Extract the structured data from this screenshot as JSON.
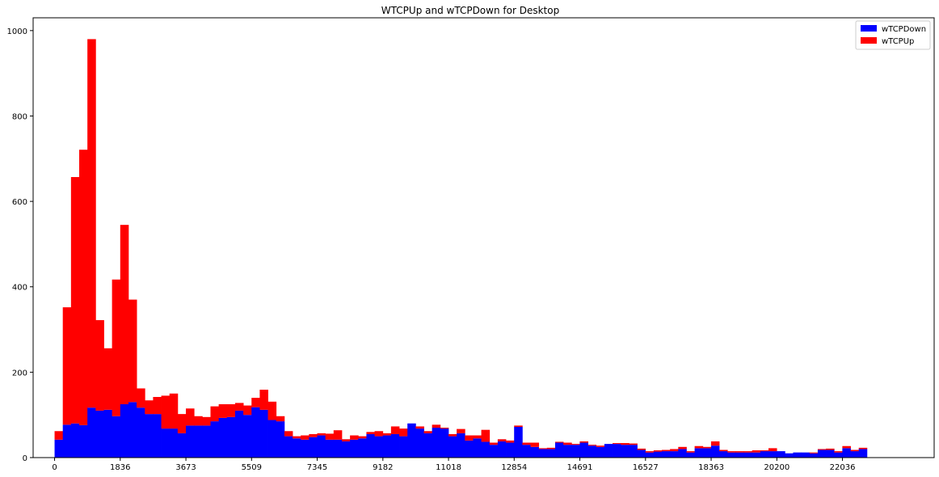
{
  "chart_data": {
    "type": "bar",
    "stacked": true,
    "title": "WTCPUp and wTCPDown for Desktop",
    "xlabel": "",
    "ylabel": "",
    "bin_width": 229.5,
    "x_start": 0,
    "xlim": [
      -600,
      24600
    ],
    "ylim": [
      0,
      1030
    ],
    "x_ticks": [
      0,
      1836,
      3673,
      5509,
      7345,
      9182,
      11018,
      12854,
      14691,
      16527,
      18363,
      20200,
      22036
    ],
    "x_tick_labels": [
      "0",
      "1836",
      "3673",
      "5509",
      "7345",
      "9182",
      "11018",
      "12854",
      "14691",
      "16527",
      "18363",
      "20200",
      "22036"
    ],
    "y_ticks": [
      0,
      200,
      400,
      600,
      800,
      1000
    ],
    "y_tick_labels": [
      "0",
      "200",
      "400",
      "600",
      "800",
      "1000"
    ],
    "grid": false,
    "legend_position": "top-right",
    "series": [
      {
        "name": "wTCPDown",
        "color": "#0000ff",
        "values": [
          42,
          77,
          80,
          76,
          117,
          110,
          112,
          97,
          125,
          130,
          117,
          102,
          102,
          68,
          68,
          57,
          75,
          75,
          75,
          85,
          93,
          95,
          110,
          100,
          118,
          112,
          88,
          85,
          50,
          45,
          42,
          48,
          52,
          42,
          42,
          38,
          42,
          45,
          55,
          50,
          52,
          55,
          50,
          80,
          68,
          57,
          70,
          68,
          50,
          57,
          40,
          45,
          37,
          30,
          38,
          35,
          72,
          30,
          25,
          20,
          20,
          35,
          30,
          30,
          35,
          28,
          25,
          32,
          32,
          30,
          30,
          18,
          12,
          14,
          15,
          15,
          20,
          12,
          22,
          22,
          28,
          15,
          12,
          12,
          12,
          12,
          15,
          15,
          15,
          10,
          12,
          12,
          10,
          18,
          18,
          12,
          22,
          15,
          20
        ]
      },
      {
        "name": "wTCPUp",
        "color": "#ff0000",
        "values": [
          20,
          275,
          577,
          645,
          863,
          212,
          144,
          320,
          420,
          240,
          45,
          32,
          40,
          77,
          82,
          45,
          40,
          22,
          20,
          35,
          32,
          30,
          18,
          22,
          22,
          47,
          43,
          12,
          12,
          5,
          10,
          7,
          5,
          14,
          22,
          5,
          10,
          5,
          5,
          12,
          5,
          18,
          18,
          0,
          5,
          5,
          7,
          2,
          5,
          10,
          12,
          7,
          28,
          5,
          5,
          5,
          3,
          5,
          10,
          2,
          3,
          2,
          5,
          2,
          3,
          2,
          3,
          0,
          2,
          4,
          3,
          3,
          3,
          3,
          3,
          5,
          5,
          3,
          5,
          3,
          10,
          3,
          3,
          3,
          3,
          5,
          2,
          7,
          0,
          0,
          0,
          0,
          2,
          2,
          3,
          3,
          5,
          3,
          3
        ]
      }
    ]
  }
}
